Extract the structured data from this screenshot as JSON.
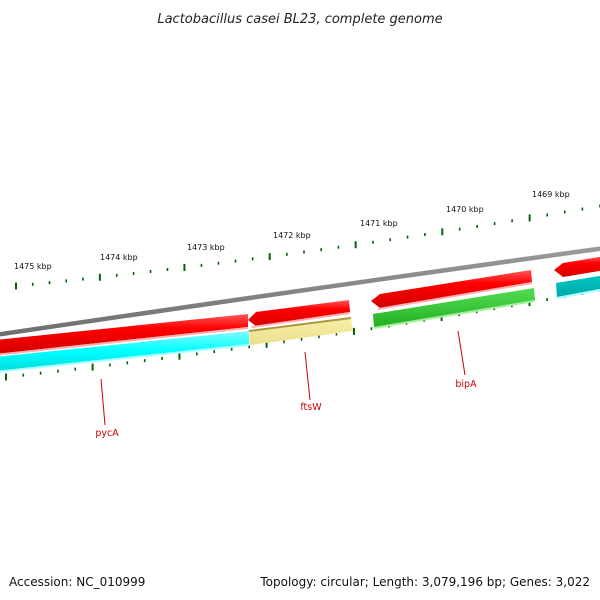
{
  "title": "Lactobacillus casei BL23, complete genome",
  "footer": {
    "accession": "Accession: NC_010999",
    "summary": "Topology: circular; Length: 3,079,196 bp; Genes: 3,022"
  },
  "ruler": {
    "labels": [
      "1475 kbp",
      "1474 kbp",
      "1473 kbp",
      "1472 kbp",
      "1471 kbp",
      "1470 kbp",
      "1469 kbp"
    ]
  },
  "genes": [
    {
      "name": "pycA"
    },
    {
      "name": "ftsW"
    },
    {
      "name": "bipA"
    }
  ],
  "colors": {
    "backbone": "#808080",
    "cds": "#ff0000",
    "rrna_cyan": "#00ffff",
    "gene_teal": "#00b3b3",
    "gene_green": "#33cc33",
    "pseudo_yellow": "#f0e68c",
    "tick": "#006400",
    "label": "#cc0000"
  }
}
